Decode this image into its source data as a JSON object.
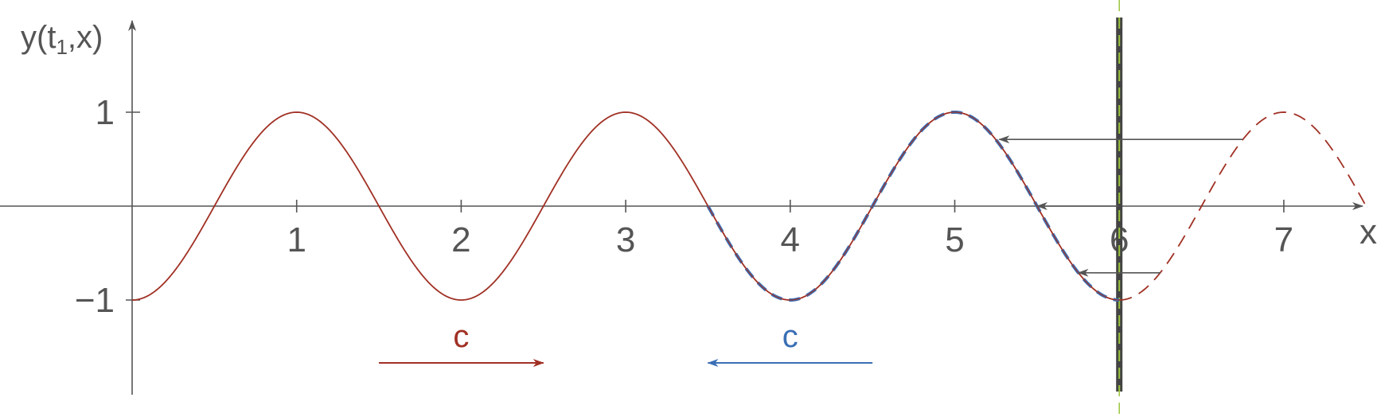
{
  "chart_data": {
    "type": "line",
    "title": "",
    "xlabel": "x",
    "ylabel": {
      "main": "y(t",
      "sub": "1",
      "tail": ",x)"
    },
    "xlim": [
      -0.8,
      7.5
    ],
    "ylim": [
      -2.0,
      2.0
    ],
    "x_ticks": [
      {
        "value": 1,
        "label": "1"
      },
      {
        "value": 2,
        "label": "2"
      },
      {
        "value": 3,
        "label": "3"
      },
      {
        "value": 4,
        "label": "4"
      },
      {
        "value": 5,
        "label": "5"
      },
      {
        "value": 6,
        "label": "6"
      },
      {
        "value": 7,
        "label": "7"
      }
    ],
    "y_ticks": [
      {
        "value": 1,
        "label": "1"
      },
      {
        "value": -1,
        "label": "−1"
      }
    ],
    "function": "y = -cos(pi * x)",
    "series": [
      {
        "role": "incident",
        "x_range": [
          0,
          6
        ],
        "style": "solid",
        "color": "#a03024"
      },
      {
        "role": "virtual",
        "x_range": [
          6,
          7.5
        ],
        "style": "dashed",
        "color": "#a03024"
      },
      {
        "role": "reflected",
        "x_range": [
          3.5,
          6
        ],
        "style": "dashed",
        "color": "#3a6fb5"
      }
    ],
    "boundary": {
      "x": 6,
      "wall_color": "#444444",
      "guide_color": "#9bc53d"
    },
    "reflection_arrows": [
      {
        "from_x": 6.75,
        "to_x": 5.27,
        "y": 0.71
      },
      {
        "from_x": 6.0,
        "to_x": 5.5,
        "y": 0.0
      },
      {
        "from_x": 6.25,
        "to_x": 5.75,
        "y": -0.71
      }
    ],
    "annotations": [
      {
        "label": "c",
        "direction": "right",
        "x_range": [
          1.5,
          2.5
        ],
        "y": -1.67,
        "color": "#a03024"
      },
      {
        "label": "c",
        "direction": "left",
        "x_range": [
          3.5,
          4.5
        ],
        "y": -1.67,
        "color": "#3a6fb5"
      }
    ],
    "grid": false
  }
}
